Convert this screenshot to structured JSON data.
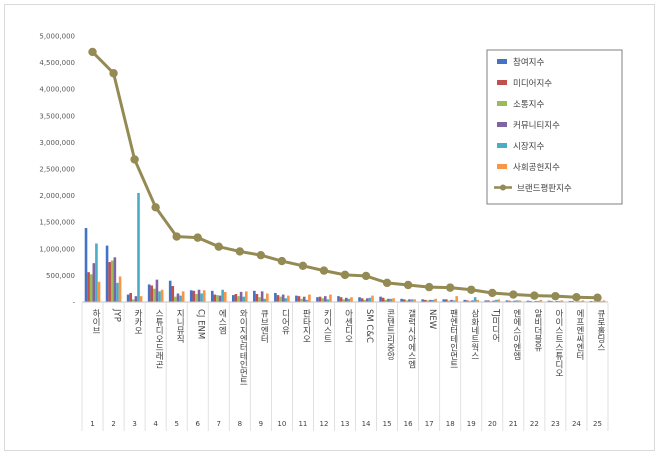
{
  "chart_data": {
    "type": "bar",
    "title": "",
    "xlabel": "",
    "ylabel": "",
    "ylim": [
      0,
      5000000
    ],
    "yticks": [
      0,
      500000,
      1000000,
      1500000,
      2000000,
      2500000,
      3000000,
      3500000,
      4000000,
      4500000,
      5000000
    ],
    "ytick_labels": [
      "-",
      "500,000",
      "1,000,000",
      "1,500,000",
      "2,000,000",
      "2,500,000",
      "3,000,000",
      "3,500,000",
      "4,000,000",
      "4,500,000",
      "5,000,000"
    ],
    "legend_position": "top-right",
    "grid": false,
    "categories": [
      "하이브",
      "JYP",
      "카카오",
      "스튜디오드래곤",
      "지니뮤직",
      "CJ ENM",
      "에스엠",
      "와이지엔터테인먼트",
      "큐브엔터",
      "디어유",
      "판타지오",
      "키이스트",
      "아센디오",
      "SM C&C",
      "콘텐트리중앙",
      "갤럭시아에스엠",
      "NEW",
      "팬엔터테인먼트",
      "삼화네트웍스",
      "TJ미디어",
      "엔에스이엔엠",
      "알비더블유",
      "아이스트스튜디오",
      "에프엔씨엔터",
      "큐로홀딩스"
    ],
    "ranks": [
      "1",
      "2",
      "3",
      "4",
      "5",
      "6",
      "7",
      "8",
      "9",
      "10",
      "11",
      "12",
      "13",
      "14",
      "15",
      "16",
      "17",
      "18",
      "19",
      "20",
      "21",
      "22",
      "23",
      "24",
      "25"
    ],
    "series": [
      {
        "name": "참여지수",
        "color": "#4472c4",
        "values": [
          1390000,
          1060000,
          140000,
          330000,
          400000,
          220000,
          210000,
          130000,
          210000,
          170000,
          120000,
          90000,
          110000,
          90000,
          100000,
          60000,
          50000,
          50000,
          40000,
          30000,
          30000,
          25000,
          25000,
          20000,
          20000
        ]
      },
      {
        "name": "미디어지수",
        "color": "#c0504d",
        "values": [
          560000,
          750000,
          170000,
          310000,
          300000,
          210000,
          140000,
          150000,
          150000,
          130000,
          110000,
          100000,
          90000,
          70000,
          80000,
          50000,
          40000,
          50000,
          30000,
          30000,
          25000,
          20000,
          20000,
          20000,
          15000
        ]
      },
      {
        "name": "소통지수",
        "color": "#9bbb59",
        "values": [
          520000,
          780000,
          50000,
          250000,
          100000,
          150000,
          130000,
          110000,
          90000,
          100000,
          60000,
          70000,
          50000,
          40000,
          40000,
          30000,
          30000,
          25000,
          20000,
          15000,
          15000,
          10000,
          10000,
          10000,
          10000
        ]
      },
      {
        "name": "커뮤니티지수",
        "color": "#8064a2",
        "values": [
          730000,
          840000,
          110000,
          420000,
          160000,
          230000,
          120000,
          190000,
          200000,
          140000,
          100000,
          110000,
          80000,
          70000,
          60000,
          50000,
          40000,
          40000,
          30000,
          25000,
          25000,
          20000,
          20000,
          15000,
          15000
        ]
      },
      {
        "name": "시장지수",
        "color": "#4bacc6",
        "values": [
          1100000,
          360000,
          2050000,
          200000,
          120000,
          160000,
          230000,
          100000,
          60000,
          70000,
          40000,
          50000,
          60000,
          80000,
          60000,
          50000,
          40000,
          30000,
          90000,
          40000,
          30000,
          20000,
          20000,
          15000,
          15000
        ]
      },
      {
        "name": "사회공헌지수",
        "color": "#f79646",
        "values": [
          380000,
          480000,
          110000,
          230000,
          200000,
          220000,
          190000,
          200000,
          160000,
          120000,
          140000,
          140000,
          90000,
          120000,
          70000,
          50000,
          60000,
          110000,
          40000,
          50000,
          30000,
          40000,
          30000,
          30000,
          30000
        ]
      }
    ],
    "line": {
      "name": "브랜드평판지수",
      "color": "#948a54",
      "values": [
        4700000,
        4300000,
        2680000,
        1780000,
        1230000,
        1210000,
        1040000,
        950000,
        880000,
        770000,
        680000,
        590000,
        510000,
        490000,
        360000,
        320000,
        280000,
        270000,
        230000,
        170000,
        140000,
        120000,
        110000,
        90000,
        80000
      ]
    }
  }
}
